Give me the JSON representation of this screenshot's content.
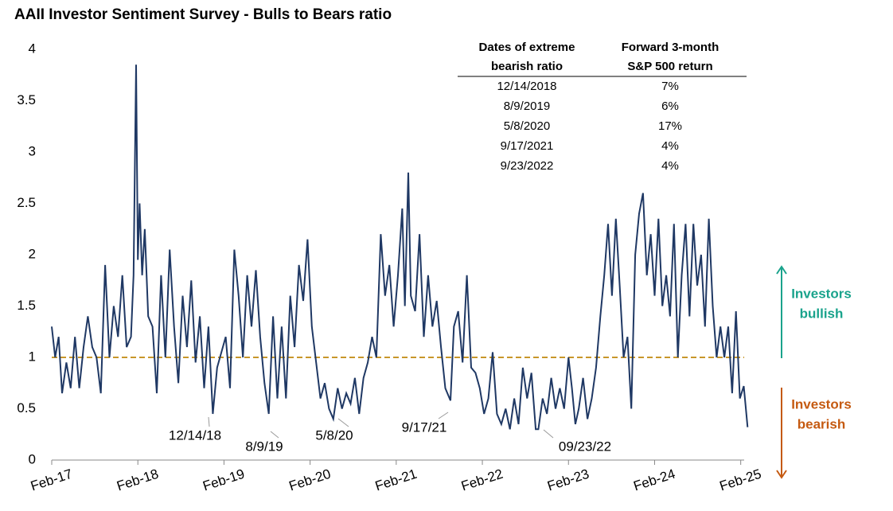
{
  "chart_data": {
    "type": "line",
    "title": "AAII Investor Sentiment Survey - Bulls to Bears ratio",
    "color": "#1f3864",
    "x": [
      2017.08,
      2017.12,
      2017.16,
      2017.2,
      2017.25,
      2017.3,
      2017.35,
      2017.4,
      2017.45,
      2017.5,
      2017.55,
      2017.6,
      2017.65,
      2017.7,
      2017.75,
      2017.8,
      2017.85,
      2017.9,
      2017.95,
      2018.0,
      2018.03,
      2018.06,
      2018.08,
      2018.1,
      2018.13,
      2018.16,
      2018.2,
      2018.25,
      2018.3,
      2018.35,
      2018.4,
      2018.45,
      2018.5,
      2018.55,
      2018.6,
      2018.65,
      2018.7,
      2018.75,
      2018.8,
      2018.85,
      2018.9,
      2018.95,
      2019.0,
      2019.05,
      2019.1,
      2019.15,
      2019.2,
      2019.25,
      2019.3,
      2019.35,
      2019.4,
      2019.45,
      2019.5,
      2019.55,
      2019.6,
      2019.65,
      2019.7,
      2019.75,
      2019.8,
      2019.85,
      2019.9,
      2019.95,
      2020.0,
      2020.05,
      2020.1,
      2020.15,
      2020.2,
      2020.25,
      2020.3,
      2020.35,
      2020.4,
      2020.45,
      2020.5,
      2020.55,
      2020.6,
      2020.65,
      2020.7,
      2020.75,
      2020.8,
      2020.85,
      2020.9,
      2020.95,
      2021.0,
      2021.05,
      2021.1,
      2021.15,
      2021.18,
      2021.22,
      2021.25,
      2021.3,
      2021.35,
      2021.4,
      2021.45,
      2021.5,
      2021.55,
      2021.6,
      2021.65,
      2021.71,
      2021.75,
      2021.8,
      2021.85,
      2021.9,
      2021.95,
      2022.0,
      2022.05,
      2022.1,
      2022.15,
      2022.2,
      2022.25,
      2022.3,
      2022.35,
      2022.4,
      2022.45,
      2022.5,
      2022.55,
      2022.6,
      2022.65,
      2022.7,
      2022.73,
      2022.78,
      2022.83,
      2022.88,
      2022.93,
      2022.98,
      2023.03,
      2023.08,
      2023.12,
      2023.16,
      2023.2,
      2023.25,
      2023.3,
      2023.35,
      2023.4,
      2023.45,
      2023.495,
      2023.54,
      2023.585,
      2023.63,
      2023.675,
      2023.72,
      2023.765,
      2023.81,
      2023.855,
      2023.9,
      2023.945,
      2023.99,
      2024.035,
      2024.08,
      2024.125,
      2024.17,
      2024.215,
      2024.26,
      2024.305,
      2024.35,
      2024.395,
      2024.44,
      2024.485,
      2024.53,
      2024.575,
      2024.62,
      2024.665,
      2024.71,
      2024.755,
      2024.8,
      2024.845,
      2024.89,
      2024.935,
      2024.98,
      2025.025,
      2025.07,
      2025.115,
      2025.16
    ],
    "values": [
      1.3,
      1.0,
      1.2,
      0.65,
      0.95,
      0.7,
      1.2,
      0.7,
      1.1,
      1.4,
      1.1,
      1.0,
      0.65,
      1.9,
      1.0,
      1.5,
      1.2,
      1.8,
      1.1,
      1.2,
      1.8,
      3.85,
      1.95,
      2.5,
      1.8,
      2.25,
      1.4,
      1.3,
      0.65,
      1.8,
      1.0,
      2.05,
      1.3,
      0.75,
      1.6,
      1.1,
      1.75,
      0.95,
      1.4,
      0.7,
      1.3,
      0.45,
      0.9,
      1.05,
      1.2,
      0.7,
      2.05,
      1.6,
      1.0,
      1.8,
      1.3,
      1.85,
      1.2,
      0.75,
      0.45,
      1.4,
      0.6,
      1.3,
      0.6,
      1.6,
      1.1,
      1.9,
      1.55,
      2.15,
      1.3,
      0.95,
      0.6,
      0.75,
      0.5,
      0.4,
      0.7,
      0.5,
      0.65,
      0.55,
      0.8,
      0.45,
      0.8,
      0.95,
      1.2,
      1.0,
      2.2,
      1.6,
      1.9,
      1.3,
      1.8,
      2.45,
      1.5,
      2.8,
      1.6,
      1.45,
      2.2,
      1.2,
      1.8,
      1.3,
      1.55,
      1.1,
      0.7,
      0.58,
      1.3,
      1.45,
      0.95,
      1.8,
      0.9,
      0.85,
      0.7,
      0.45,
      0.6,
      1.05,
      0.45,
      0.35,
      0.5,
      0.3,
      0.6,
      0.35,
      0.9,
      0.6,
      0.85,
      0.3,
      0.3,
      0.6,
      0.45,
      0.8,
      0.5,
      0.7,
      0.5,
      1.0,
      0.7,
      0.35,
      0.5,
      0.8,
      0.4,
      0.6,
      0.9,
      1.4,
      1.8,
      2.3,
      1.6,
      2.35,
      1.7,
      1.0,
      1.2,
      0.5,
      2.0,
      2.4,
      2.6,
      1.8,
      2.2,
      1.6,
      2.35,
      1.5,
      1.8,
      1.4,
      2.3,
      1.0,
      1.8,
      2.3,
      1.4,
      2.3,
      1.7,
      2.0,
      1.3,
      2.35,
      1.5,
      1.0,
      1.3,
      1.0,
      1.3,
      0.65,
      1.45,
      0.6,
      0.72,
      0.32
    ],
    "xlim": [
      2017.08,
      2025.12
    ],
    "xticks": [
      {
        "value": 2017.08,
        "label": "Feb-17"
      },
      {
        "value": 2018.08,
        "label": "Feb-18"
      },
      {
        "value": 2019.08,
        "label": "Feb-19"
      },
      {
        "value": 2020.08,
        "label": "Feb-20"
      },
      {
        "value": 2021.08,
        "label": "Feb-21"
      },
      {
        "value": 2022.08,
        "label": "Feb-22"
      },
      {
        "value": 2023.08,
        "label": "Feb-23"
      },
      {
        "value": 2024.08,
        "label": "Feb-24"
      },
      {
        "value": 2025.08,
        "label": "Feb-25"
      }
    ],
    "ylim": [
      0,
      4
    ],
    "yticks": [
      0,
      0.5,
      1,
      1.5,
      2,
      2.5,
      3,
      3.5,
      4
    ],
    "reference_line": {
      "value": 1,
      "color": "#c8962a"
    },
    "annotations": [
      "12/14/18",
      "8/9/19",
      "5/8/20",
      "9/17/21",
      "09/23/22"
    ],
    "side_labels": [
      {
        "lines": [
          "Investors",
          "bullish"
        ],
        "color": "#1aa38c"
      },
      {
        "lines": [
          "Investors",
          "bearish"
        ],
        "color": "#c55a11"
      }
    ],
    "table": {
      "header": [
        [
          "Dates of extreme",
          "bearish ratio"
        ],
        [
          "Forward 3-month",
          "S&P 500 return"
        ]
      ],
      "rows": [
        [
          "12/14/2018",
          "7%"
        ],
        [
          "8/9/2019",
          "6%"
        ],
        [
          "5/8/2020",
          "17%"
        ],
        [
          "9/17/2021",
          "4%"
        ],
        [
          "9/23/2022",
          "4%"
        ]
      ]
    }
  }
}
